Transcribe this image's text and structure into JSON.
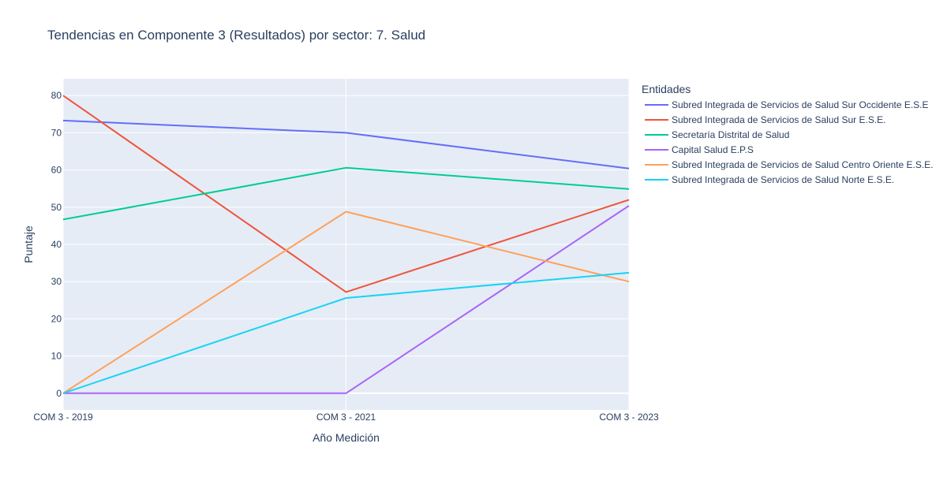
{
  "chart_data": {
    "type": "line",
    "title": "Tendencias en Componente 3 (Resultados) por sector: 7. Salud",
    "xlabel": "Año Medición",
    "ylabel": "Puntaje",
    "categories": [
      "COM 3 - 2019",
      "COM 3 - 2021",
      "COM 3 - 2023"
    ],
    "ylim": [
      -4.5,
      84.5
    ],
    "yticks": [
      0,
      10,
      20,
      30,
      40,
      50,
      60,
      70,
      80
    ],
    "grid": true,
    "legend_title": "Entidades",
    "legend_position": "right",
    "plot_background": "#e5ecf6",
    "series": [
      {
        "name": "Subred Integrada de Servicios de Salud Sur Occidente E.S.E",
        "color": "#636efa",
        "values": [
          73.3,
          70.0,
          60.4
        ]
      },
      {
        "name": "Subred Integrada de Servicios de Salud Sur E.S.E.",
        "color": "#ef553b",
        "values": [
          80.0,
          27.2,
          52.0
        ]
      },
      {
        "name": "Secretaría Distrital de Salud",
        "color": "#00cc96",
        "values": [
          46.7,
          60.6,
          54.9
        ]
      },
      {
        "name": "Capital Salud E.P.S",
        "color": "#ab63fa",
        "values": [
          0,
          0,
          50.4
        ]
      },
      {
        "name": "Subred Integrada de Servicios de Salud Centro Oriente E.S.E.",
        "color": "#ffa15a",
        "values": [
          0,
          48.8,
          30.0
        ]
      },
      {
        "name": "Subred Integrada de Servicios de Salud Norte  E.S.E.",
        "color": "#19d3f3",
        "values": [
          0,
          25.6,
          32.4
        ]
      }
    ]
  }
}
